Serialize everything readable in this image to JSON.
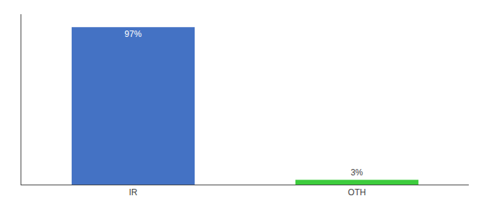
{
  "chart_data": {
    "type": "bar",
    "categories": [
      "IR",
      "OTH"
    ],
    "values": [
      97,
      3
    ],
    "colors": [
      "#4472c4",
      "#3dcc3d"
    ],
    "value_labels": [
      "97%",
      "3%"
    ],
    "data_labels": true,
    "ylim": [
      0,
      105
    ],
    "yticks": [],
    "tick_labels": "x",
    "grid": false
  }
}
